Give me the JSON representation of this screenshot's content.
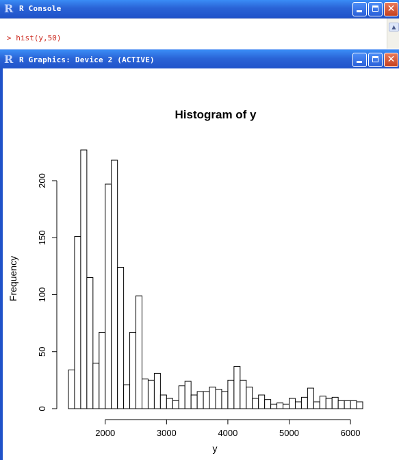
{
  "console": {
    "title": "R Console",
    "command": "> hist(y,50)"
  },
  "graphics": {
    "title": "R Graphics: Device 2 (ACTIVE)"
  },
  "window_icons": {
    "minimize": "minimize-icon",
    "maximize": "maximize-icon",
    "close": "close-icon",
    "app": "r-logo-icon"
  },
  "chart_data": {
    "type": "bar",
    "title": "Histogram of y",
    "xlabel": "y",
    "ylabel": "Frequency",
    "bin_width": 100,
    "bins_start": [
      1400,
      1500,
      1600,
      1700,
      1800,
      1900,
      2000,
      2100,
      2200,
      2300,
      2400,
      2500,
      2600,
      2700,
      2800,
      2900,
      3000,
      3100,
      3200,
      3300,
      3400,
      3500,
      3600,
      3700,
      3800,
      3900,
      4000,
      4100,
      4200,
      4300,
      4400,
      4500,
      4600,
      4700,
      4800,
      4900,
      5000,
      5100,
      5200,
      5300,
      5400,
      5500,
      5600,
      5700,
      5800,
      5900,
      6000,
      6100
    ],
    "values": [
      34,
      151,
      227,
      115,
      40,
      67,
      197,
      218,
      124,
      21,
      67,
      99,
      26,
      25,
      31,
      12,
      9,
      7,
      20,
      24,
      12,
      15,
      15,
      19,
      17,
      15,
      25,
      37,
      25,
      19,
      9,
      12,
      8,
      4,
      5,
      4,
      9,
      6,
      10,
      18,
      6,
      11,
      9,
      10,
      7,
      7,
      7,
      6
    ],
    "xticks": [
      2000,
      3000,
      4000,
      5000,
      6000
    ],
    "yticks": [
      0,
      50,
      100,
      150,
      200
    ],
    "xlim": [
      1400,
      6200
    ],
    "ylim": [
      0,
      227
    ],
    "colors": {
      "fill": "#ffffff",
      "stroke": "#000000"
    }
  }
}
